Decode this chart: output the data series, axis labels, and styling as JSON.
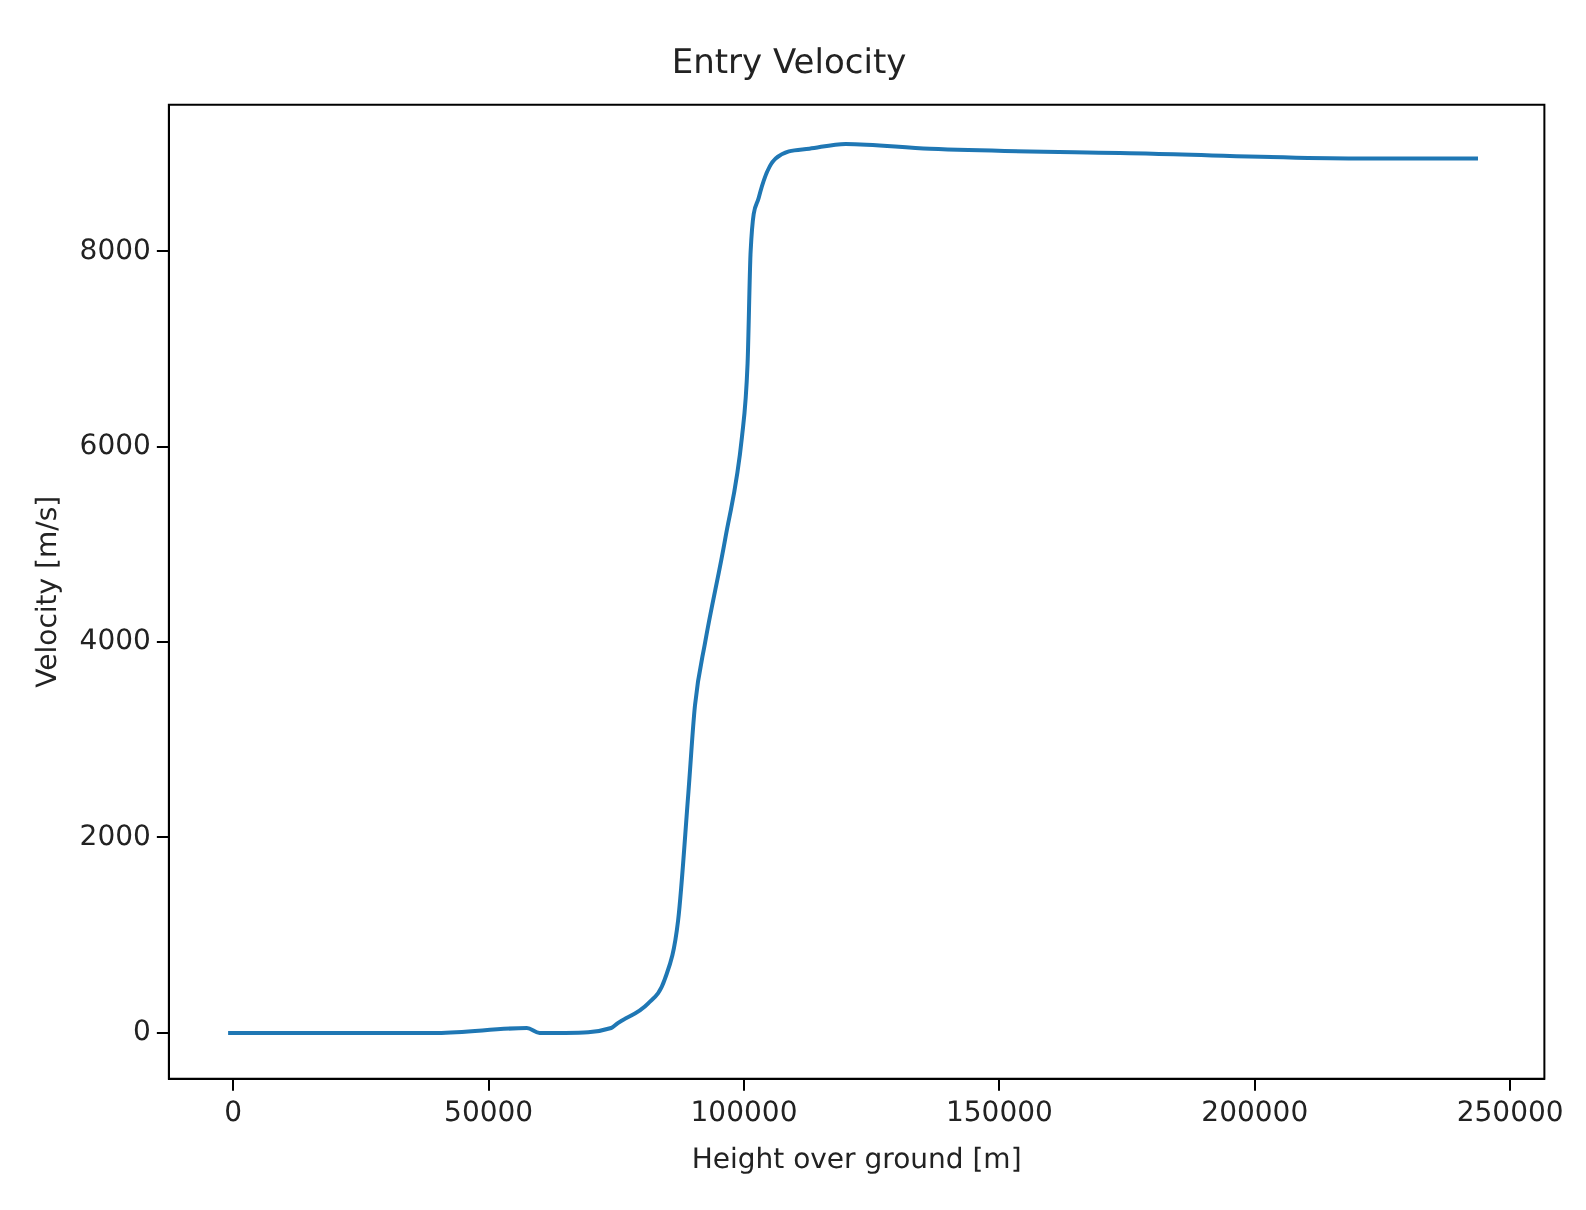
{
  "chart_data": {
    "type": "line",
    "title": "Entry Velocity",
    "xlabel": "Height over ground [m]",
    "ylabel": "Velocity [m/s]",
    "xlim": [
      -12600,
      256700
    ],
    "ylim": [
      -470,
      9500
    ],
    "xticks": [
      0,
      50000,
      100000,
      150000,
      200000,
      250000
    ],
    "yticks": [
      0,
      2000,
      4000,
      6000,
      8000
    ],
    "grid": false,
    "legend": false,
    "series": [
      {
        "color": "#1f77b4",
        "x": [
          -1000,
          20000,
          40000,
          57500,
          60000,
          65000,
          74000,
          75300,
          81200,
          84500,
          87100,
          89100,
          90400,
          92400,
          96300,
          99600,
          100700,
          101300,
          102900,
          106200,
          112800,
          119900,
          136400,
          180000,
          220000,
          243700
        ],
        "values": [
          0,
          0,
          0,
          50,
          0,
          0,
          50,
          100,
          300,
          550,
          1150,
          2450,
          3350,
          4000,
          5050,
          6100,
          6850,
          8000,
          8550,
          8950,
          9050,
          9100,
          9050,
          9000,
          8950,
          8950
        ]
      }
    ]
  }
}
